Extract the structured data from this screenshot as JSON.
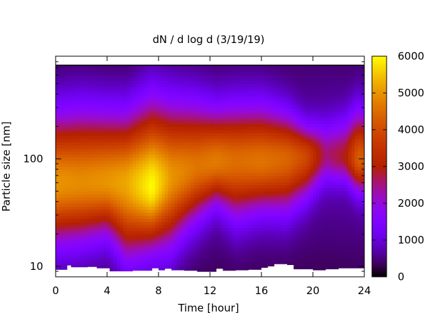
{
  "chart_data": {
    "type": "heatmap",
    "title": "dN / d log d (3/19/19)",
    "xlabel": "Time [hour]",
    "ylabel": "Particle size [nm]",
    "xlim": [
      0,
      24
    ],
    "ylim": [
      8,
      900
    ],
    "y_scale": "log",
    "x_ticks": [
      0,
      4,
      8,
      12,
      16,
      20,
      24
    ],
    "x_tick_labels": [
      "0",
      "4",
      "8",
      "12",
      "16",
      "20",
      "24"
    ],
    "y_ticks": [
      10,
      100
    ],
    "y_tick_labels": [
      "10",
      "100"
    ],
    "colorbar": {
      "range": [
        0,
        6000
      ],
      "ticks": [
        0,
        1000,
        2000,
        3000,
        4000,
        5000,
        6000
      ],
      "tick_labels": [
        "0",
        "1000",
        "2000",
        "3000",
        "4000",
        "5000",
        "6000"
      ],
      "colormap": "gnuplot (black-purple-red-orange-yellow)"
    },
    "grid": false,
    "legend": "none",
    "size_max_nm": 750,
    "mode_profile": {
      "time": [
        0,
        2,
        4,
        5.5,
        7.5,
        9,
        11,
        12.5,
        14,
        16,
        18,
        19.5,
        21,
        22.5,
        23.5,
        24
      ],
      "peak_size_nm": [
        60,
        60,
        62,
        60,
        55,
        68,
        85,
        95,
        95,
        95,
        100,
        105,
        110,
        105,
        100,
        100
      ],
      "peak_value": [
        4300,
        4200,
        4300,
        4500,
        5300,
        4300,
        3900,
        4000,
        3800,
        3900,
        3700,
        3200,
        1800,
        2200,
        3600,
        3500
      ],
      "lower_edge_nm": [
        24,
        25,
        28,
        19,
        22,
        24,
        38,
        50,
        40,
        45,
        45,
        55,
        70,
        70,
        60,
        60
      ],
      "upper_edge_nm": [
        170,
        180,
        175,
        170,
        200,
        210,
        220,
        210,
        220,
        220,
        200,
        170,
        180,
        190,
        210,
        200
      ]
    },
    "lower_size_bound": {
      "time": [
        0,
        0.9,
        1.2,
        2.5,
        3.2,
        4.2,
        6,
        7,
        7.5,
        8,
        8.5,
        9,
        10,
        11,
        12.5,
        13,
        14,
        15,
        16,
        16.5,
        17,
        18,
        18.5,
        20,
        21,
        22,
        23,
        24
      ],
      "size_nm": [
        9.3,
        10.2,
        9.8,
        9.9,
        9.6,
        9.0,
        9.1,
        9.1,
        9.6,
        9.2,
        9.5,
        9.2,
        9.1,
        8.9,
        9.5,
        9.1,
        9.2,
        9.3,
        9.7,
        10.0,
        10.5,
        10.3,
        9.4,
        9.2,
        9.4,
        9.6,
        9.6,
        9.6
      ]
    }
  }
}
